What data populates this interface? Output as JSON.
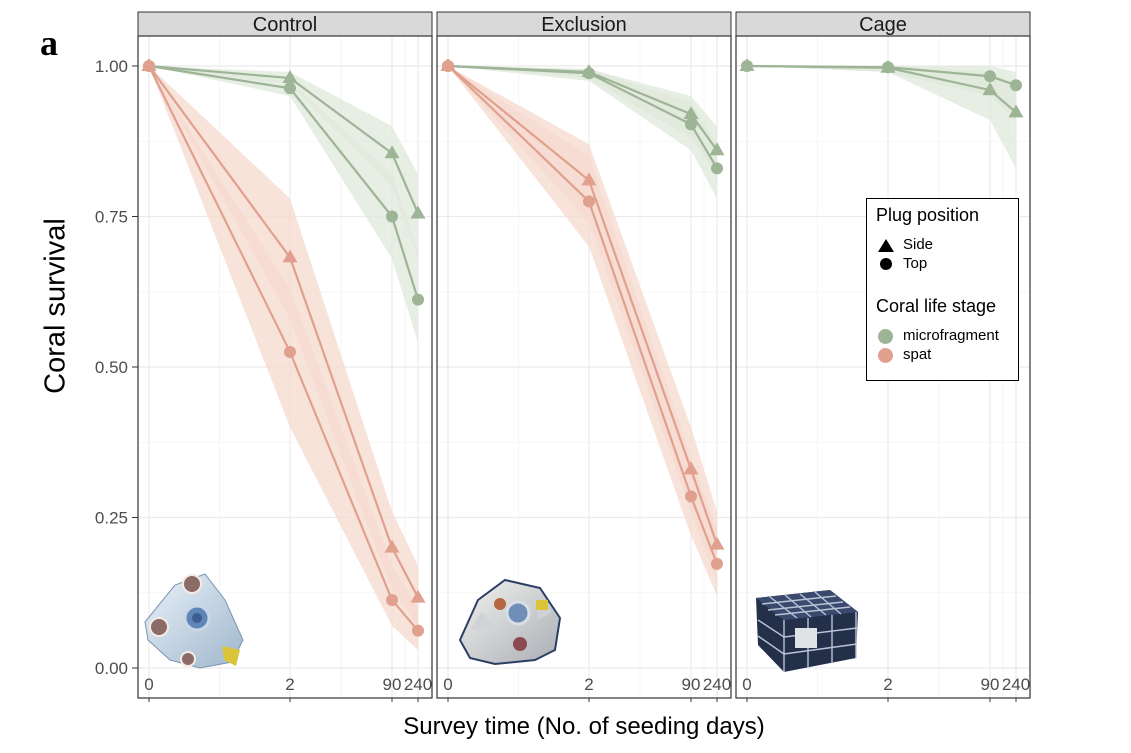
{
  "panel_letter": "a",
  "colors": {
    "microfragment": "#9db596",
    "spat": "#e0a08d",
    "band_micro": "#dfe8db",
    "band_spat": "#f6d9cf",
    "strip": "#d9d9d9",
    "grid": "#ebebeb"
  },
  "chart_data": {
    "type": "line",
    "ylabel": "Coral survival",
    "xlabel": "Survey time (No. of seeding days)",
    "x_ticks": [
      "0",
      "2",
      "90",
      "240"
    ],
    "y_ticks": [
      "0.00",
      "0.25",
      "0.50",
      "0.75",
      "1.00"
    ],
    "ylim": [
      0,
      1.05
    ],
    "legend": {
      "position": "right",
      "shape_title": "Plug position",
      "shapes": [
        {
          "shape": "triangle",
          "label": "Side"
        },
        {
          "shape": "circle",
          "label": "Top"
        }
      ],
      "color_title": "Coral life stage",
      "colors": [
        {
          "key": "microfragment",
          "label": "microfragment"
        },
        {
          "key": "spat",
          "label": "spat"
        }
      ]
    },
    "panels": [
      {
        "name": "Control",
        "series": [
          {
            "stage": "microfragment",
            "position": "Side",
            "values": [
              1.0,
              0.98,
              0.855,
              0.755
            ],
            "lower": [
              1.0,
              0.97,
              0.8,
              0.68
            ],
            "upper": [
              1.0,
              0.99,
              0.9,
              0.82
            ]
          },
          {
            "stage": "microfragment",
            "position": "Top",
            "values": [
              1.0,
              0.963,
              0.75,
              0.612
            ],
            "lower": [
              1.0,
              0.95,
              0.68,
              0.54
            ],
            "upper": [
              1.0,
              0.975,
              0.82,
              0.69
            ]
          },
          {
            "stage": "spat",
            "position": "Side",
            "values": [
              1.0,
              0.682,
              0.2,
              0.117
            ],
            "lower": [
              1.0,
              0.58,
              0.13,
              0.07
            ],
            "upper": [
              1.0,
              0.78,
              0.26,
              0.17
            ]
          },
          {
            "stage": "spat",
            "position": "Top",
            "values": [
              1.0,
              0.525,
              0.113,
              0.062
            ],
            "lower": [
              1.0,
              0.4,
              0.07,
              0.03
            ],
            "upper": [
              1.0,
              0.63,
              0.17,
              0.1
            ]
          }
        ]
      },
      {
        "name": "Exclusion",
        "series": [
          {
            "stage": "microfragment",
            "position": "Side",
            "values": [
              1.0,
              0.99,
              0.92,
              0.86
            ],
            "lower": [
              1.0,
              0.98,
              0.88,
              0.82
            ],
            "upper": [
              1.0,
              0.995,
              0.95,
              0.9
            ]
          },
          {
            "stage": "microfragment",
            "position": "Top",
            "values": [
              1.0,
              0.988,
              0.903,
              0.83
            ],
            "lower": [
              1.0,
              0.975,
              0.86,
              0.78
            ],
            "upper": [
              1.0,
              0.995,
              0.94,
              0.87
            ]
          },
          {
            "stage": "spat",
            "position": "Side",
            "values": [
              1.0,
              0.81,
              0.33,
              0.205
            ],
            "lower": [
              1.0,
              0.74,
              0.26,
              0.14
            ],
            "upper": [
              1.0,
              0.87,
              0.4,
              0.26
            ]
          },
          {
            "stage": "spat",
            "position": "Top",
            "values": [
              1.0,
              0.775,
              0.285,
              0.173
            ],
            "lower": [
              1.0,
              0.7,
              0.22,
              0.12
            ],
            "upper": [
              1.0,
              0.85,
              0.35,
              0.23
            ]
          }
        ]
      },
      {
        "name": "Cage",
        "series": [
          {
            "stage": "microfragment",
            "position": "Side",
            "values": [
              1.0,
              0.997,
              0.96,
              0.923
            ],
            "lower": [
              1.0,
              0.99,
              0.91,
              0.83
            ],
            "upper": [
              1.0,
              1.0,
              0.99,
              0.97
            ]
          },
          {
            "stage": "microfragment",
            "position": "Top",
            "values": [
              1.0,
              0.998,
              0.983,
              0.968
            ],
            "lower": [
              1.0,
              0.99,
              0.95,
              0.91
            ],
            "upper": [
              1.0,
              1.0,
              1.0,
              0.99
            ]
          }
        ]
      }
    ]
  }
}
